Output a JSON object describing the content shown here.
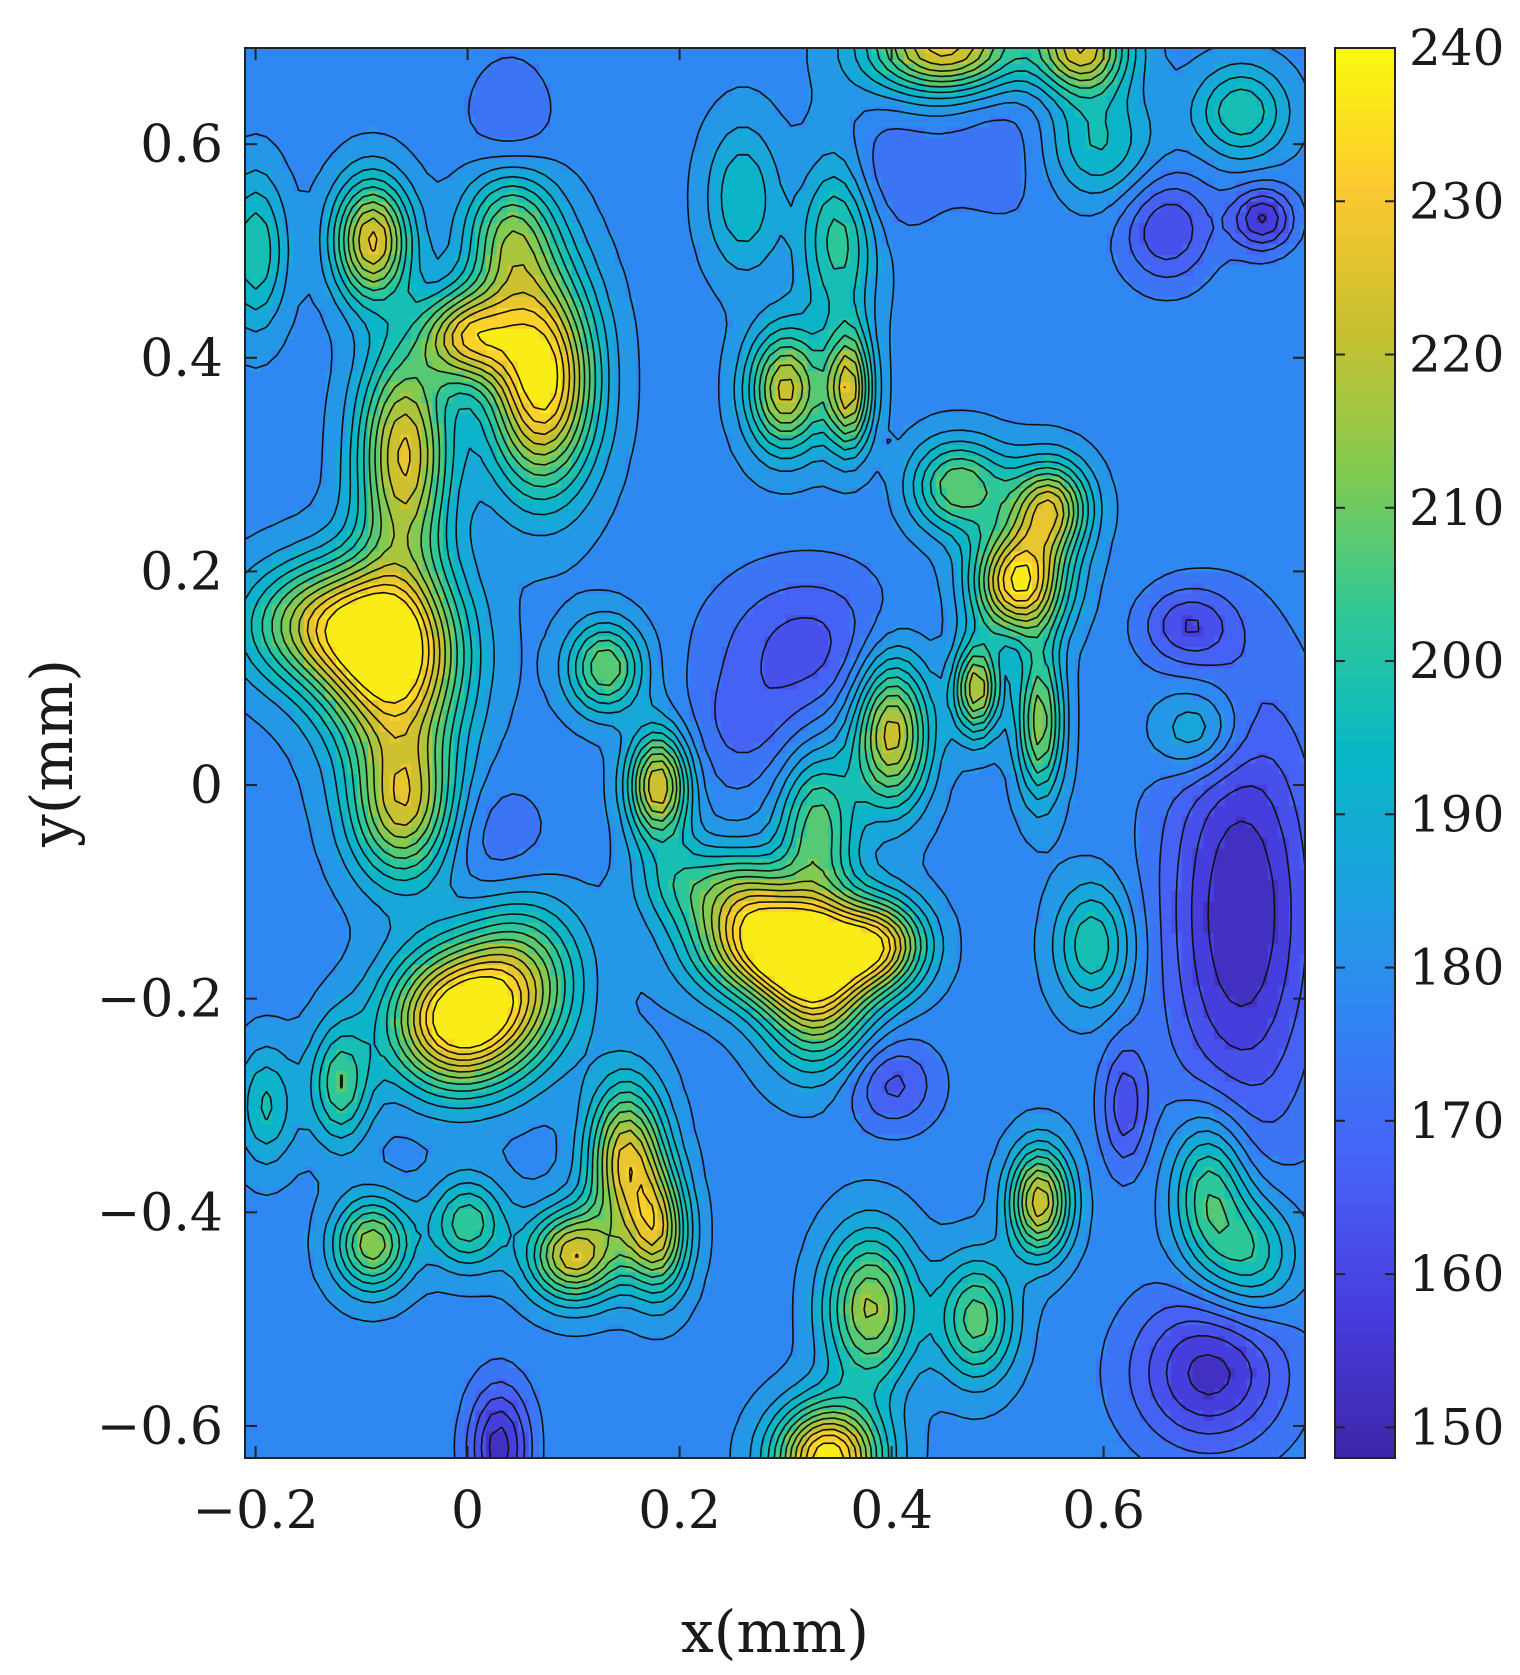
{
  "chart_data": {
    "type": "heatmap",
    "subtype": "filled-contour",
    "title": "",
    "xlabel": "x(mm)",
    "ylabel": "y(mm)",
    "xlim": [
      -0.21,
      0.79
    ],
    "ylim": [
      -0.63,
      0.69
    ],
    "x_ticks": [
      -0.2,
      0,
      0.2,
      0.4,
      0.6
    ],
    "x_tick_labels": [
      "−0.2",
      "0",
      "0.2",
      "0.4",
      "0.6"
    ],
    "y_ticks": [
      0.6,
      0.4,
      0.2,
      0,
      -0.2,
      -0.4,
      -0.6
    ],
    "y_tick_labels": [
      "0.6",
      "0.4",
      "0.2",
      "0",
      "−0.2",
      "−0.4",
      "−0.6"
    ],
    "colorbar": {
      "min": 148,
      "max": 240,
      "ticks": [
        240,
        230,
        220,
        210,
        200,
        190,
        180,
        170,
        160,
        150
      ],
      "tick_labels": [
        "240",
        "230",
        "220",
        "210",
        "200",
        "190",
        "180",
        "170",
        "160",
        "150"
      ],
      "colormap": "parula"
    },
    "contour_levels": [
      150,
      155,
      160,
      165,
      170,
      175,
      180,
      185,
      190,
      195,
      200,
      205,
      210,
      215,
      220,
      225,
      230,
      235
    ],
    "background_level": 178,
    "features": [
      {
        "x": 0.07,
        "y": 0.38,
        "peak": 240,
        "sx": 0.035,
        "sy": 0.07
      },
      {
        "x": 0.04,
        "y": 0.52,
        "peak": 212,
        "sx": 0.03,
        "sy": 0.05
      },
      {
        "x": -0.07,
        "y": 0.12,
        "peak": 240,
        "sx": 0.045,
        "sy": 0.06
      },
      {
        "x": -0.06,
        "y": -0.02,
        "peak": 222,
        "sx": 0.035,
        "sy": 0.05
      },
      {
        "x": -0.14,
        "y": 0.15,
        "peak": 215,
        "sx": 0.05,
        "sy": 0.04
      },
      {
        "x": -0.06,
        "y": 0.31,
        "peak": 226,
        "sx": 0.03,
        "sy": 0.07
      },
      {
        "x": -0.09,
        "y": 0.51,
        "peak": 226,
        "sx": 0.025,
        "sy": 0.04
      },
      {
        "x": 0.0,
        "y": 0.42,
        "peak": 222,
        "sx": 0.03,
        "sy": 0.03
      },
      {
        "x": -0.01,
        "y": -0.22,
        "peak": 240,
        "sx": 0.045,
        "sy": 0.045
      },
      {
        "x": 0.05,
        "y": -0.18,
        "peak": 210,
        "sx": 0.04,
        "sy": 0.05
      },
      {
        "x": 0.15,
        "y": -0.35,
        "peak": 226,
        "sx": 0.025,
        "sy": 0.05
      },
      {
        "x": 0.1,
        "y": -0.44,
        "peak": 224,
        "sx": 0.03,
        "sy": 0.03
      },
      {
        "x": 0.18,
        "y": -0.42,
        "peak": 218,
        "sx": 0.02,
        "sy": 0.04
      },
      {
        "x": 0.29,
        "y": -0.15,
        "peak": 236,
        "sx": 0.05,
        "sy": 0.035
      },
      {
        "x": 0.33,
        "y": -0.19,
        "peak": 222,
        "sx": 0.035,
        "sy": 0.05
      },
      {
        "x": 0.39,
        "y": -0.15,
        "peak": 222,
        "sx": 0.03,
        "sy": 0.03
      },
      {
        "x": 0.33,
        "y": -0.04,
        "peak": 208,
        "sx": 0.025,
        "sy": 0.05
      },
      {
        "x": 0.4,
        "y": 0.05,
        "peak": 224,
        "sx": 0.025,
        "sy": 0.05
      },
      {
        "x": 0.52,
        "y": 0.19,
        "peak": 236,
        "sx": 0.03,
        "sy": 0.035
      },
      {
        "x": 0.55,
        "y": 0.26,
        "peak": 222,
        "sx": 0.025,
        "sy": 0.03
      },
      {
        "x": 0.46,
        "y": 0.28,
        "peak": 212,
        "sx": 0.035,
        "sy": 0.03
      },
      {
        "x": 0.48,
        "y": 0.09,
        "peak": 220,
        "sx": 0.015,
        "sy": 0.03
      },
      {
        "x": 0.54,
        "y": 0.06,
        "peak": 214,
        "sx": 0.015,
        "sy": 0.05
      },
      {
        "x": 0.54,
        "y": -0.39,
        "peak": 224,
        "sx": 0.02,
        "sy": 0.035
      },
      {
        "x": 0.34,
        "y": -0.63,
        "peak": 240,
        "sx": 0.035,
        "sy": 0.035
      },
      {
        "x": 0.38,
        "y": -0.49,
        "peak": 216,
        "sx": 0.03,
        "sy": 0.05
      },
      {
        "x": 0.48,
        "y": -0.5,
        "peak": 208,
        "sx": 0.025,
        "sy": 0.04
      },
      {
        "x": 0.18,
        "y": 0.0,
        "peak": 226,
        "sx": 0.02,
        "sy": 0.035
      },
      {
        "x": 0.13,
        "y": 0.11,
        "peak": 210,
        "sx": 0.025,
        "sy": 0.03
      },
      {
        "x": 0.3,
        "y": 0.37,
        "peak": 222,
        "sx": 0.025,
        "sy": 0.04
      },
      {
        "x": 0.36,
        "y": 0.37,
        "peak": 222,
        "sx": 0.015,
        "sy": 0.04
      },
      {
        "x": 0.35,
        "y": 0.52,
        "peak": 205,
        "sx": 0.025,
        "sy": 0.06
      },
      {
        "x": 0.26,
        "y": 0.55,
        "peak": 195,
        "sx": 0.025,
        "sy": 0.05
      },
      {
        "x": 0.45,
        "y": 0.69,
        "peak": 228,
        "sx": 0.05,
        "sy": 0.03
      },
      {
        "x": 0.58,
        "y": 0.69,
        "peak": 224,
        "sx": 0.03,
        "sy": 0.03
      },
      {
        "x": 0.59,
        "y": 0.6,
        "peak": 202,
        "sx": 0.04,
        "sy": 0.04
      },
      {
        "x": 0.73,
        "y": 0.63,
        "peak": 200,
        "sx": 0.03,
        "sy": 0.03
      },
      {
        "x": 0.69,
        "y": 0.05,
        "peak": 196,
        "sx": 0.03,
        "sy": 0.03
      },
      {
        "x": 0.7,
        "y": -0.38,
        "peak": 206,
        "sx": 0.025,
        "sy": 0.05
      },
      {
        "x": 0.74,
        "y": -0.44,
        "peak": 200,
        "sx": 0.03,
        "sy": 0.04
      },
      {
        "x": 0.59,
        "y": -0.15,
        "peak": 200,
        "sx": 0.025,
        "sy": 0.04
      },
      {
        "x": -0.19,
        "y": -0.3,
        "peak": 196,
        "sx": 0.02,
        "sy": 0.04
      },
      {
        "x": -0.12,
        "y": -0.28,
        "peak": 204,
        "sx": 0.02,
        "sy": 0.04
      },
      {
        "x": -0.09,
        "y": -0.43,
        "peak": 214,
        "sx": 0.025,
        "sy": 0.03
      },
      {
        "x": 0.0,
        "y": -0.41,
        "peak": 204,
        "sx": 0.025,
        "sy": 0.03
      },
      {
        "x": -0.2,
        "y": 0.5,
        "peak": 200,
        "sx": 0.02,
        "sy": 0.05
      },
      {
        "x": 0.2,
        "y": -0.09,
        "peak": 195,
        "sx": 0.03,
        "sy": 0.03
      },
      {
        "x": 0.26,
        "y": -0.1,
        "peak": 200,
        "sx": 0.03,
        "sy": 0.03
      },
      {
        "x": 0.02,
        "y": -0.05,
        "peak": 170,
        "sx": 0.04,
        "sy": 0.04
      },
      {
        "x": 0.26,
        "y": 0.05,
        "peak": 170,
        "sx": 0.04,
        "sy": 0.04
      },
      {
        "x": 0.32,
        "y": 0.13,
        "peak": 163,
        "sx": 0.06,
        "sy": 0.05
      },
      {
        "x": 0.38,
        "y": 0.57,
        "peak": 168,
        "sx": 0.04,
        "sy": 0.04
      },
      {
        "x": 0.42,
        "y": 0.28,
        "peak": 172,
        "sx": 0.03,
        "sy": 0.03
      },
      {
        "x": 0.73,
        "y": -0.12,
        "peak": 150,
        "sx": 0.05,
        "sy": 0.14
      },
      {
        "x": 0.7,
        "y": -0.55,
        "peak": 153,
        "sx": 0.05,
        "sy": 0.05
      },
      {
        "x": 0.66,
        "y": 0.52,
        "peak": 160,
        "sx": 0.03,
        "sy": 0.035
      },
      {
        "x": 0.75,
        "y": 0.53,
        "peak": 154,
        "sx": 0.02,
        "sy": 0.02
      },
      {
        "x": 0.68,
        "y": 0.15,
        "peak": 162,
        "sx": 0.03,
        "sy": 0.025
      },
      {
        "x": 0.62,
        "y": -0.3,
        "peak": 162,
        "sx": 0.015,
        "sy": 0.04
      },
      {
        "x": 0.4,
        "y": -0.28,
        "peak": 163,
        "sx": 0.03,
        "sy": 0.03
      },
      {
        "x": 0.03,
        "y": -0.62,
        "peak": 152,
        "sx": 0.02,
        "sy": 0.04
      },
      {
        "x": 0.04,
        "y": 0.6,
        "peak": 166,
        "sx": 0.03,
        "sy": 0.05
      },
      {
        "x": 0.54,
        "y": 0.6,
        "peak": 168,
        "sx": 0.06,
        "sy": 0.05
      }
    ]
  }
}
